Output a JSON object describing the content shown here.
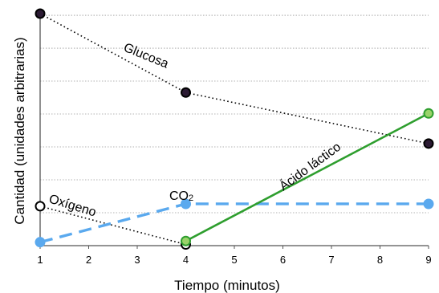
{
  "chart_data": {
    "type": "line",
    "xlabel": "Tiempo (minutos)",
    "ylabel": "Cantidad (unidades arbitrarias)",
    "xlim": [
      1,
      9
    ],
    "x_ticks": [
      "1",
      "2",
      "3",
      "4",
      "5",
      "6",
      "7",
      "8",
      "9"
    ],
    "ylim": [
      0,
      10
    ],
    "grid": "horizontal dotted",
    "series": [
      {
        "name": "Glucosa",
        "style": "dotted",
        "color": "#000000",
        "marker_fill": "#2b1a33",
        "points": [
          {
            "x": 1,
            "y": 10
          },
          {
            "x": 4,
            "y": 6.6
          },
          {
            "x": 9,
            "y": 4.4
          }
        ]
      },
      {
        "name": "Oxígeno",
        "style": "dotted",
        "color": "#000000",
        "marker_fill": "#ffffff",
        "points": [
          {
            "x": 1,
            "y": 1.7
          },
          {
            "x": 4,
            "y": 0.05
          }
        ]
      },
      {
        "name": "CO2",
        "style": "dashed",
        "color": "#5aa9ee",
        "marker_fill": "#5aa9ee",
        "points": [
          {
            "x": 1,
            "y": 0.15
          },
          {
            "x": 4,
            "y": 1.8
          },
          {
            "x": 9,
            "y": 1.8
          }
        ]
      },
      {
        "name": "Ácido láctico",
        "style": "solid",
        "color": "#2e9e2e",
        "marker_fill": "#9ad36a",
        "points": [
          {
            "x": 4,
            "y": 0.2
          },
          {
            "x": 9,
            "y": 5.7
          }
        ]
      }
    ]
  }
}
